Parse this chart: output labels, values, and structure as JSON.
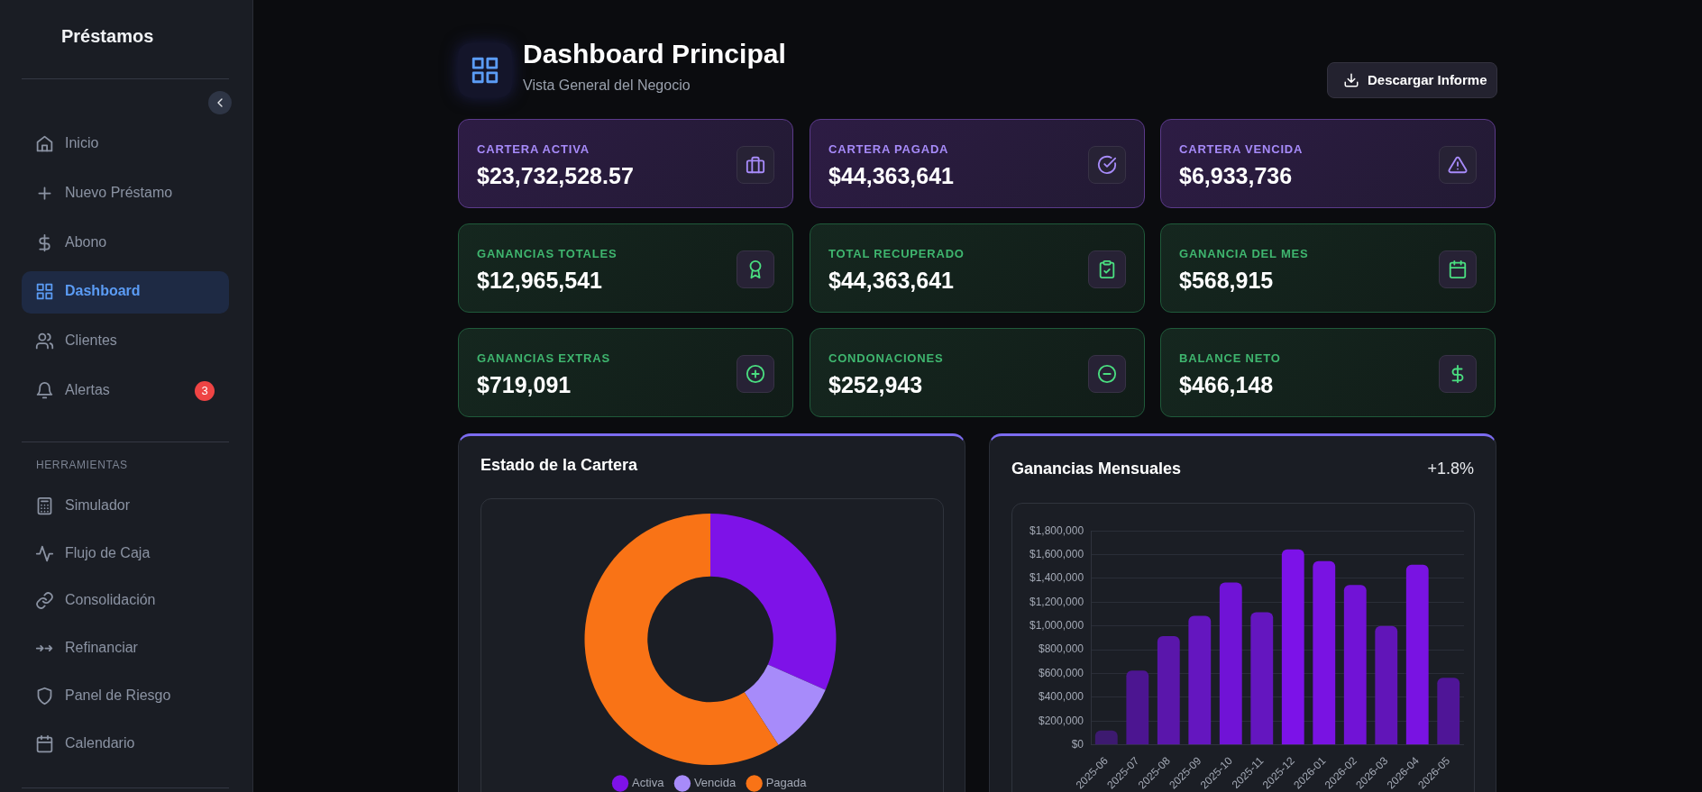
{
  "chart_data": [
    {
      "type": "other",
      "title": "Préstamos",
      "annotations": [
        "Inicio",
        "Nuevo Préstamo",
        "Abono",
        "Dashboard",
        "Clientes",
        "Alertas",
        "3",
        "HERRAMIENTAS",
        "Simulador",
        "Flujo de Caja",
        "Consolidación",
        "Refinanciar",
        "Panel de Riesgo",
        "Calendario"
      ]
    },
    {
      "type": "other",
      "title": "Dashboard Principal",
      "subtitle": "Vista General del Negocio",
      "annotations": [
        "Descargar Informe",
        "CARTERA ACTIVA",
        "$23,732,528.57",
        "CARTERA PAGADA",
        "$44,363,641",
        "CARTERA VENCIDA",
        "$6,933,736",
        "GANANCIAS TOTALES",
        "$12,965,541",
        "TOTAL RECUPERADO",
        "$44,363,641",
        "GANANCIA DEL MES",
        "$568,915",
        "GANANCIAS EXTRAS",
        "$719,091",
        "CONDONACIONES",
        "$252,943",
        "BALANCE NETO",
        "$466,148"
      ]
    },
    {
      "type": "donut",
      "title": "Estado de la Cartera",
      "categories": [
        "Activa",
        "Vencida",
        "Pagada"
      ],
      "values": [
        31.6,
        9.3,
        59.1
      ],
      "colors": [
        "#7e12e8",
        "#a78bfa",
        "#f97316"
      ],
      "legend": "bottom"
    },
    {
      "type": "bar",
      "title": "Ganancias Mensuales",
      "annotations": [
        "+1.8%"
      ],
      "categories": [
        "2025-06",
        "2025-07",
        "2025-08",
        "2025-09",
        "2025-10",
        "2025-11",
        "2025-12",
        "2026-01",
        "2026-02",
        "2026-03",
        "2026-04",
        "2026-05"
      ],
      "values": [
        120000,
        625000,
        915000,
        1085000,
        1365000,
        1115000,
        1645000,
        1545000,
        1345000,
        1000000,
        1515000,
        565000
      ],
      "colors": [
        "#3d1a70",
        "#4c1591",
        "#5a16ab",
        "#6416bf",
        "#7013d6",
        "#6416bf",
        "#7c12e8",
        "#7913e2",
        "#7113d6",
        "#6115b8",
        "#7913e2",
        "#4f1597"
      ],
      "ylim": [
        0,
        1800000
      ],
      "yticks": [
        {
          "value": 0,
          "label": "$0"
        },
        {
          "value": 200000,
          "label": "$200,000"
        },
        {
          "value": 400000,
          "label": "$400,000"
        },
        {
          "value": 600000,
          "label": "$600,000"
        },
        {
          "value": 800000,
          "label": "$800,000"
        },
        {
          "value": 1000000,
          "label": "$1,000,000"
        },
        {
          "value": 1200000,
          "label": "$1,200,000"
        },
        {
          "value": 1400000,
          "label": "$1,400,000"
        },
        {
          "value": 1600000,
          "label": "$1,600,000"
        },
        {
          "value": 1800000,
          "label": "$1,800,000"
        }
      ],
      "grid": "y",
      "legend": false
    }
  ]
}
